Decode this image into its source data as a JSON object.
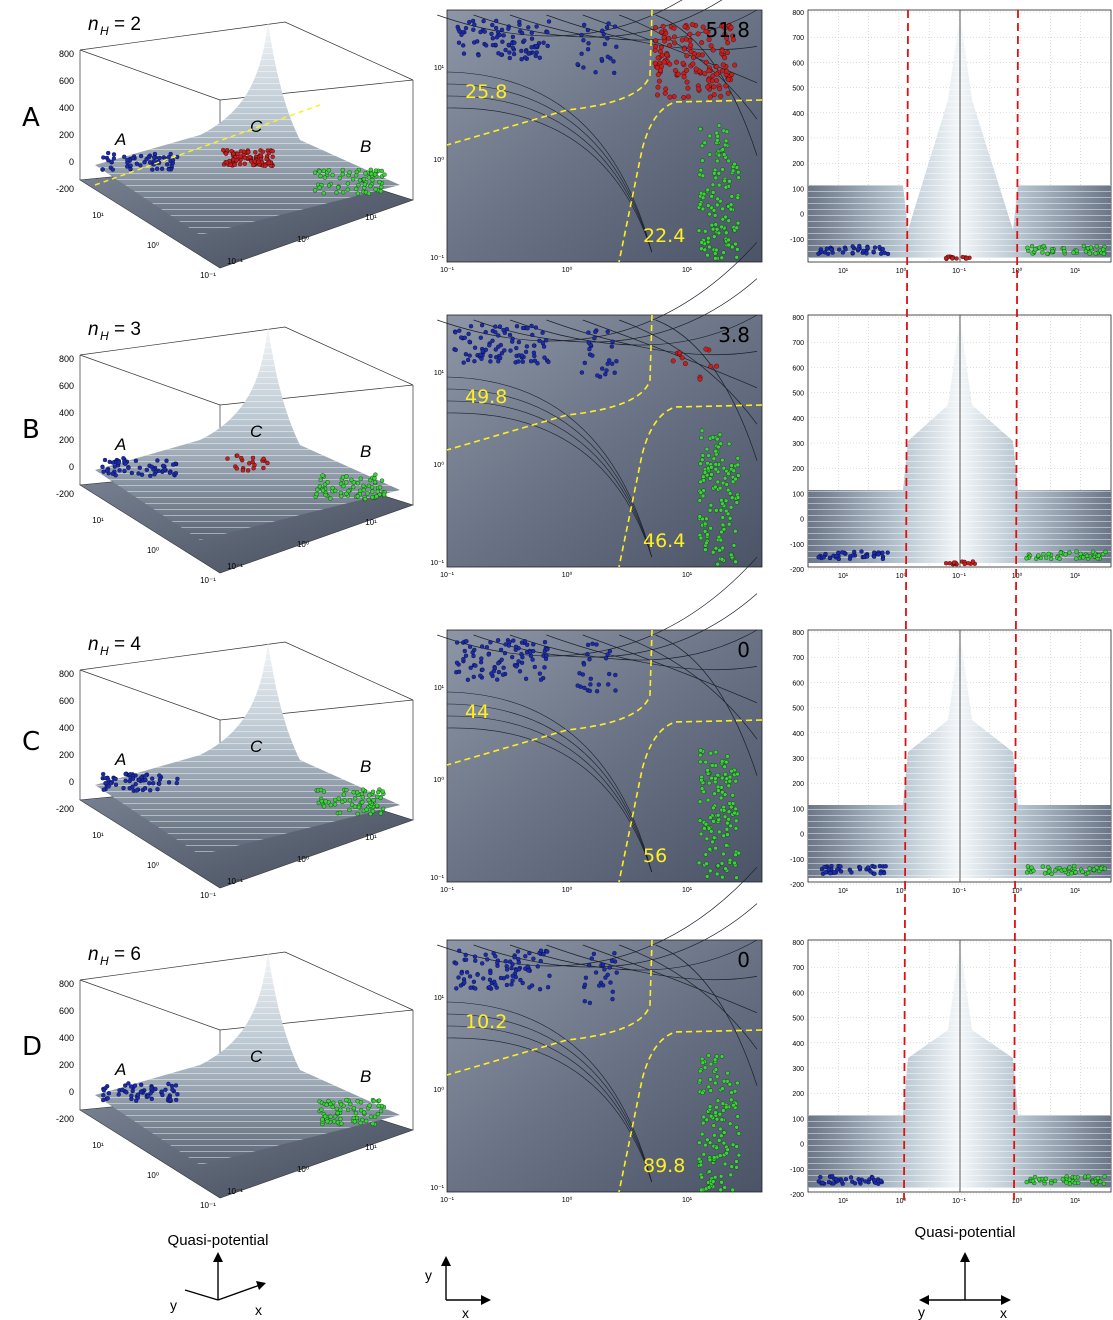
{
  "figure": {
    "bottom_label_left": "Quasi-potential",
    "bottom_label_right": "Quasi-potential",
    "axis_y_symbol": "y",
    "axis_x_symbol": "x",
    "colors": {
      "state_A": "#1a2bb0",
      "state_B": "#3bd23b",
      "state_C": "#c81e1e",
      "boundary": "#ffee22",
      "region_label": "#ffee22",
      "red_dash": "#dd1111"
    }
  },
  "chart_data": [
    {
      "type": "heatmap",
      "row": "A",
      "nH_value": "2",
      "left_surface_3d": {
        "z_ticks": [
          "800",
          "600",
          "400",
          "200",
          "0",
          "-200"
        ],
        "y_ticks": [
          "10¹",
          "10⁰",
          "10⁻¹"
        ],
        "x_ticks": [
          "10⁻¹",
          "10⁰",
          "10¹"
        ],
        "basin_labels": [
          "A",
          "C",
          "B"
        ]
      },
      "middle_contour": {
        "x_ticks": [
          "10⁻¹",
          "10⁰",
          "10¹"
        ],
        "y_ticks": [
          "10⁻¹",
          "10⁰",
          "10¹"
        ],
        "percent_A": "25.8",
        "percent_C": "51.8",
        "percent_B": "22.4"
      },
      "right_side_view": {
        "y_ticks": [
          "800",
          "700",
          "600",
          "500",
          "400",
          "300",
          "200",
          "100",
          "0",
          "-100"
        ],
        "x_ticks": [
          "10¹",
          "10⁰",
          "10⁻¹",
          "10⁰",
          "10¹"
        ]
      }
    },
    {
      "type": "heatmap",
      "row": "B",
      "nH_value": "3",
      "left_surface_3d": {
        "z_ticks": [
          "800",
          "600",
          "400",
          "200",
          "0",
          "-200"
        ],
        "y_ticks": [
          "10¹",
          "10⁰",
          "10⁻¹"
        ],
        "x_ticks": [
          "10⁻¹",
          "10⁰",
          "10¹"
        ],
        "basin_labels": [
          "A",
          "C",
          "B"
        ]
      },
      "middle_contour": {
        "x_ticks": [
          "10⁻¹",
          "10⁰",
          "10¹"
        ],
        "y_ticks": [
          "10⁻¹",
          "10⁰",
          "10¹"
        ],
        "percent_A": "49.8",
        "percent_C": "3.8",
        "percent_B": "46.4"
      },
      "right_side_view": {
        "y_ticks": [
          "800",
          "700",
          "600",
          "500",
          "400",
          "300",
          "200",
          "100",
          "0",
          "-100",
          "-200"
        ],
        "x_ticks": [
          "10¹",
          "10⁰",
          "10⁻¹",
          "10⁰",
          "10¹"
        ]
      }
    },
    {
      "type": "heatmap",
      "row": "C",
      "nH_value": "4",
      "left_surface_3d": {
        "z_ticks": [
          "800",
          "600",
          "400",
          "200",
          "0",
          "-200"
        ],
        "y_ticks": [
          "10¹",
          "10⁰",
          "10⁻¹"
        ],
        "x_ticks": [
          "10⁻¹",
          "10⁰",
          "10¹"
        ],
        "basin_labels": [
          "A",
          "C",
          "B"
        ]
      },
      "middle_contour": {
        "x_ticks": [
          "10⁻¹",
          "10⁰",
          "10¹"
        ],
        "y_ticks": [
          "10⁻¹",
          "10⁰",
          "10¹"
        ],
        "percent_A": "44",
        "percent_C": "0",
        "percent_B": "56"
      },
      "right_side_view": {
        "y_ticks": [
          "800",
          "700",
          "600",
          "500",
          "400",
          "300",
          "200",
          "100",
          "0",
          "-100",
          "-200"
        ],
        "x_ticks": [
          "10¹",
          "10⁰",
          "10⁻¹",
          "10⁰",
          "10¹"
        ]
      }
    },
    {
      "type": "heatmap",
      "row": "D",
      "nH_value": "6",
      "left_surface_3d": {
        "z_ticks": [
          "800",
          "600",
          "400",
          "200",
          "0",
          "-200"
        ],
        "y_ticks": [
          "10¹",
          "10⁰",
          "10⁻¹"
        ],
        "x_ticks": [
          "10⁻¹",
          "10⁰",
          "10¹"
        ],
        "basin_labels": [
          "A",
          "C",
          "B"
        ]
      },
      "middle_contour": {
        "x_ticks": [
          "10⁻¹",
          "10⁰",
          "10¹"
        ],
        "y_ticks": [
          "10⁻¹",
          "10⁰",
          "10¹"
        ],
        "percent_A": "10.2",
        "percent_C": "0",
        "percent_B": "89.8"
      },
      "right_side_view": {
        "y_ticks": [
          "800",
          "700",
          "600",
          "500",
          "400",
          "300",
          "200",
          "100",
          "0",
          "-100",
          "-200"
        ],
        "x_ticks": [
          "10¹",
          "10⁰",
          "10⁻¹",
          "10⁰",
          "10¹"
        ]
      }
    }
  ]
}
